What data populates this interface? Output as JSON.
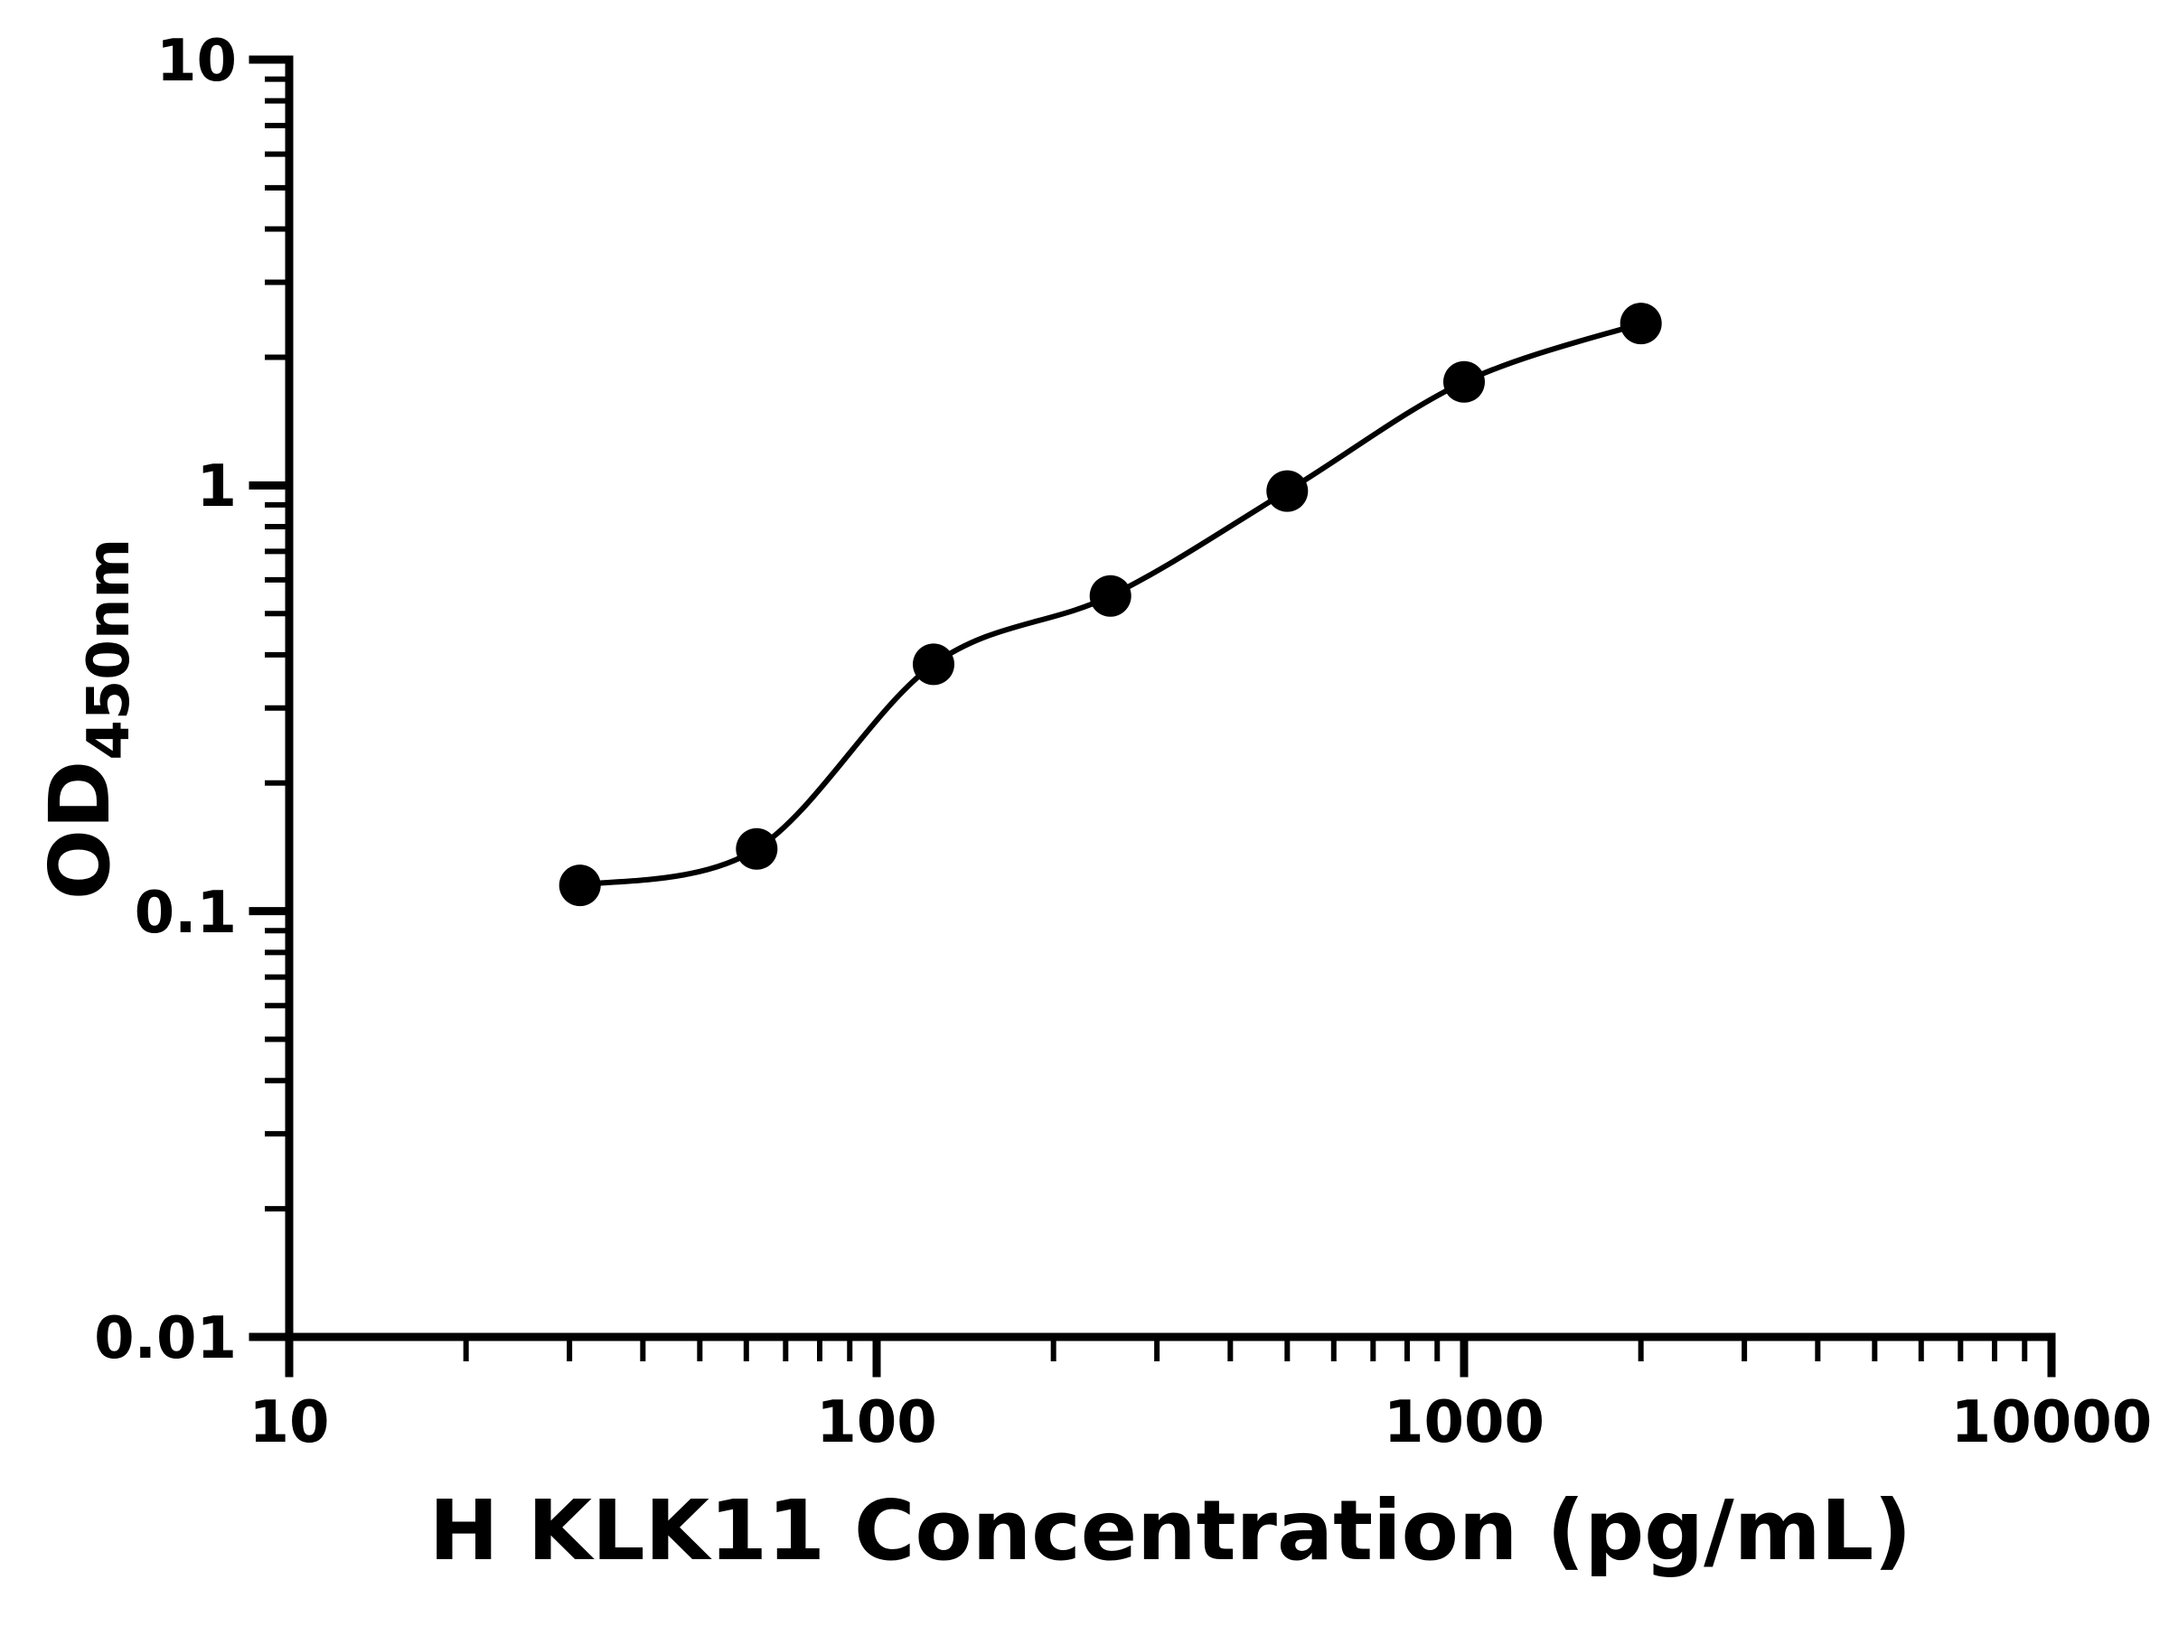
{
  "figure": {
    "background": "#ffffff",
    "foreground": "#000000"
  },
  "chart_data": {
    "type": "scatter",
    "title": "",
    "xlabel": "H KLK11 Concentration (pg/mL)",
    "ylabel_main": "OD",
    "ylabel_sub": "450nm",
    "x_scale": "log",
    "y_scale": "log",
    "xlim": [
      10,
      10000
    ],
    "ylim": [
      0.01,
      10
    ],
    "x_ticks": [
      10,
      100,
      1000,
      10000
    ],
    "x_tick_labels": [
      "10",
      "100",
      "1000",
      "10000"
    ],
    "y_ticks": [
      10,
      1,
      0.1,
      0.01
    ],
    "y_tick_labels": [
      "10",
      "1",
      "0.1",
      "0.01"
    ],
    "grid": "off",
    "legend": "none",
    "marker_color": "#000000",
    "line_color": "#000000",
    "points": [
      {
        "x": 31.25,
        "y": 0.115
      },
      {
        "x": 62.5,
        "y": 0.14
      },
      {
        "x": 125,
        "y": 0.38
      },
      {
        "x": 250,
        "y": 0.55
      },
      {
        "x": 500,
        "y": 0.97
      },
      {
        "x": 1000,
        "y": 1.75
      },
      {
        "x": 2000,
        "y": 2.4
      }
    ],
    "curve": "smooth fit through standard points (4PL-style)"
  }
}
